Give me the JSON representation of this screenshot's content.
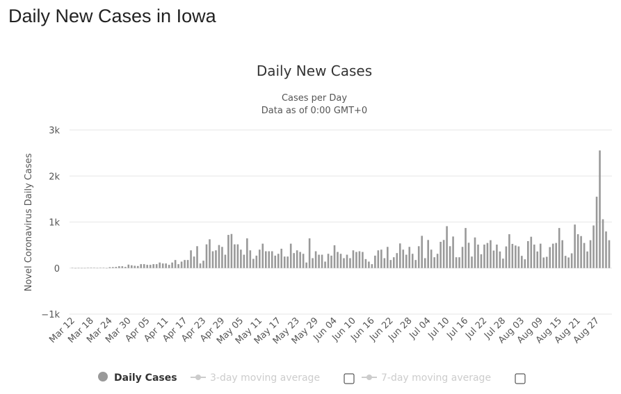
{
  "page_title": "Daily New Cases in Iowa",
  "chart_data": {
    "type": "bar",
    "title": "Daily New Cases",
    "subtitle_1": "Cases per Day",
    "subtitle_2": "Data as of 0:00 GMT+0",
    "ylabel": "Novel Coronavirus Daily Cases",
    "xlabel": "",
    "ylim": [
      -1000,
      3000
    ],
    "y_ticks": [
      {
        "v": 3000,
        "label": "3k"
      },
      {
        "v": 2000,
        "label": "2k"
      },
      {
        "v": 1000,
        "label": "1k"
      },
      {
        "v": 0,
        "label": "0"
      },
      {
        "v": -1000,
        "label": "−1k"
      }
    ],
    "start_date": "Mar 12",
    "end_date": "Aug 31",
    "x_tick_every_days": 6,
    "x_tick_labels": [
      "Mar 12",
      "Mar 18",
      "Mar 24",
      "Mar 30",
      "Apr 05",
      "Apr 11",
      "Apr 17",
      "Apr 23",
      "Apr 29",
      "May 05",
      "May 11",
      "May 17",
      "May 23",
      "May 29",
      "Jun 04",
      "Jun 10",
      "Jun 16",
      "Jun 22",
      "Jun 28",
      "Jul 04",
      "Jul 10",
      "Jul 16",
      "Jul 22",
      "Jul 28",
      "Aug 03",
      "Aug 09",
      "Aug 15",
      "Aug 21",
      "Aug 27"
    ],
    "grid": true,
    "series": [
      {
        "name": "Daily Cases",
        "color": "#999999",
        "values": [
          3,
          0,
          2,
          1,
          1,
          5,
          8,
          6,
          2,
          6,
          7,
          0,
          19,
          21,
          25,
          40,
          40,
          25,
          75,
          60,
          50,
          45,
          85,
          85,
          70,
          70,
          85,
          85,
          120,
          100,
          100,
          70,
          120,
          175,
          85,
          140,
          175,
          175,
          385,
          250,
          475,
          100,
          160,
          515,
          625,
          365,
          385,
          500,
          460,
          290,
          720,
          740,
          515,
          515,
          400,
          290,
          645,
          385,
          200,
          270,
          400,
          530,
          365,
          365,
          365,
          270,
          310,
          420,
          250,
          250,
          530,
          325,
          385,
          350,
          310,
          120,
          645,
          215,
          365,
          290,
          290,
          140,
          310,
          270,
          495,
          350,
          310,
          215,
          290,
          215,
          385,
          350,
          365,
          350,
          195,
          140,
          85,
          270,
          385,
          400,
          215,
          460,
          175,
          235,
          325,
          535,
          400,
          290,
          460,
          310,
          175,
          475,
          700,
          215,
          610,
          400,
          235,
          310,
          570,
          610,
          910,
          475,
          685,
          235,
          235,
          460,
          870,
          550,
          250,
          665,
          510,
          300,
          510,
          545,
          605,
          380,
          510,
          360,
          205,
          470,
          735,
          525,
          490,
          470,
          265,
          190,
          585,
          680,
          510,
          360,
          530,
          230,
          245,
          455,
          530,
          545,
          870,
          605,
          265,
          230,
          320,
          945,
          735,
          695,
          545,
          360,
          605,
          925,
          1550,
          2555,
          1060,
          795,
          605
        ]
      }
    ],
    "legend": [
      {
        "label": "Daily Cases",
        "active": true
      },
      {
        "label": "3-day moving average",
        "active": false
      },
      {
        "label": "7-day moving average",
        "active": false
      }
    ],
    "legend_placement": "bottom"
  }
}
